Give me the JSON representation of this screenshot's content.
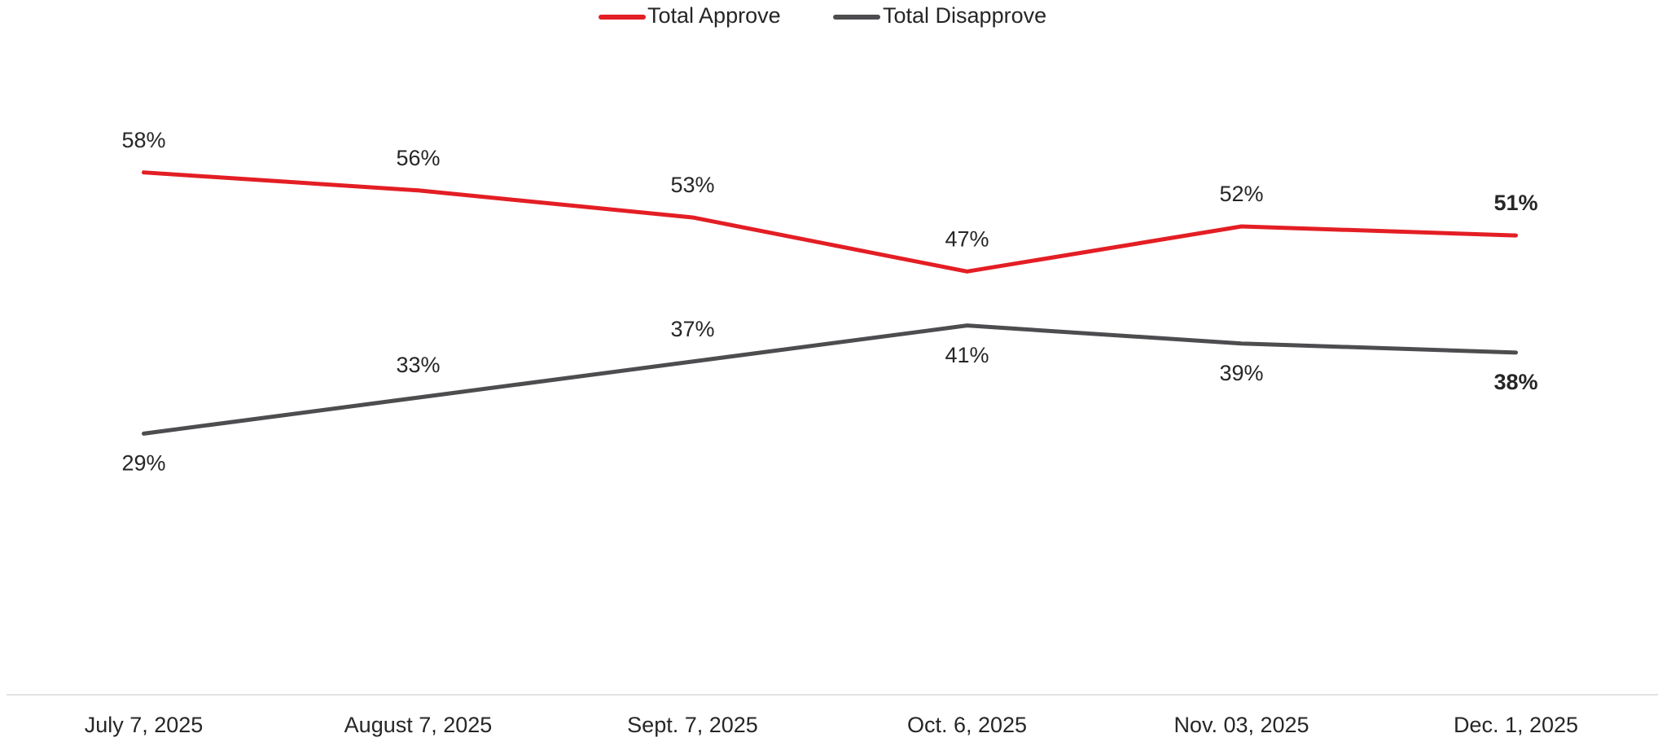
{
  "chart_data": {
    "type": "line",
    "categories": [
      "July 7, 2025",
      "August 7, 2025",
      "Sept. 7, 2025",
      "Oct. 6, 2025",
      "Nov. 03, 2025",
      "Dec. 1, 2025"
    ],
    "series": [
      {
        "name": "Total Approve",
        "color": "#e31e24",
        "values": [
          58,
          56,
          53,
          47,
          52,
          51
        ],
        "value_labels": [
          "58%",
          "56%",
          "53%",
          "47%",
          "52%",
          "51%"
        ]
      },
      {
        "name": "Total Disapprove",
        "color": "#4d4d50",
        "values": [
          29,
          33,
          37,
          41,
          39,
          38
        ],
        "value_labels": [
          "29%",
          "33%",
          "37%",
          "41%",
          "39%",
          "38%"
        ]
      }
    ],
    "ylim": [
      0,
      70
    ],
    "legend": "top",
    "grid": false
  }
}
